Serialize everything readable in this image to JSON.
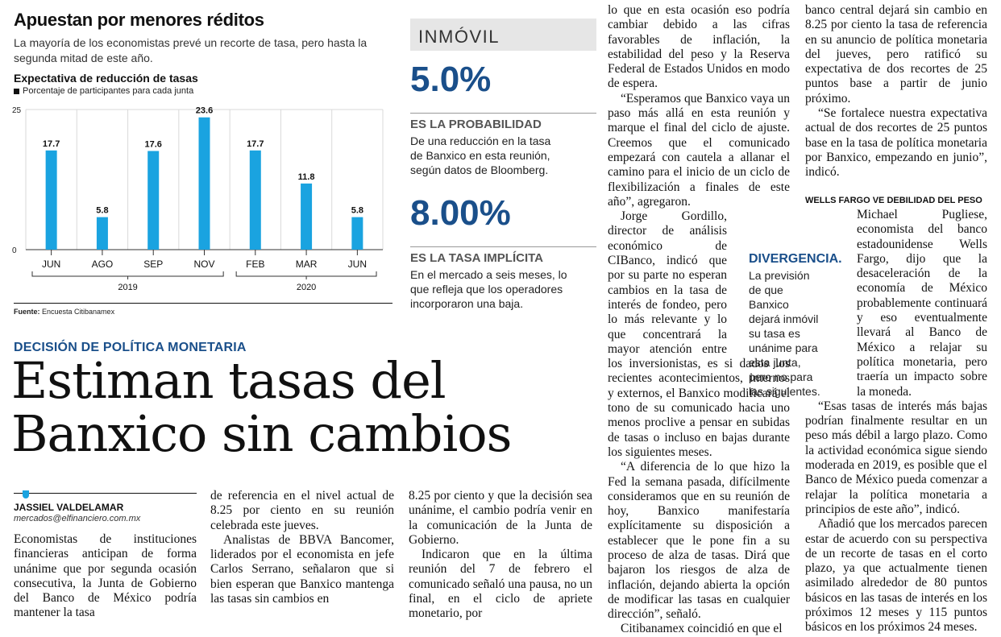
{
  "chart": {
    "title": "Apuestan por menores réditos",
    "subtitle": "La mayoría de los economistas prevé un recorte de tasa, pero hasta la segunda mitad de este año.",
    "heading": "Expectativa de reducción de tasas",
    "legend": "Porcentaje de participantes para cada junta",
    "source_label": "Fuente:",
    "source_text": "Encuesta Citibanamex"
  },
  "chart_data": {
    "type": "bar",
    "categories": [
      "JUN",
      "AGO",
      "SEP",
      "NOV",
      "FEB",
      "MAR",
      "JUN"
    ],
    "values": [
      17.7,
      5.8,
      17.6,
      23.6,
      17.7,
      11.8,
      5.8
    ],
    "value_labels": [
      "17.7",
      "5.8",
      "17.6",
      "23.6",
      "17.7",
      "11.8",
      "5.8"
    ],
    "ylim": [
      0,
      25
    ],
    "yticks": [
      "25",
      "0"
    ],
    "groups": [
      {
        "label": "2019",
        "span": [
          0,
          3
        ]
      },
      {
        "label": "2020",
        "span": [
          4,
          6
        ]
      }
    ],
    "bar_color": "#1aa3e0",
    "grid": true
  },
  "article": {
    "kicker": "DECISIÓN DE POLÍTICA MONETARIA",
    "headline_line1": "Estiman tasas del",
    "headline_line2": "Banxico sin cambios",
    "author": "JASSIEL VALDELAMAR",
    "email": "mercados@elfinanciero.com.mx",
    "col1": "Economistas de instituciones financieras anticipan de forma unánime que por segunda ocasión consecutiva, la Junta de Gobierno del Banco de México podría mantener la tasa",
    "col2a": "de referencia en el nivel actual de 8.25 por ciento en su reunión celebrada este jueves.",
    "col2b": "Analistas de BBVA Bancomer, liderados por el economista en jefe Carlos Serrano, señalaron que si bien esperan que Banxico mantenga las tasas sin cambios en",
    "col3a": "8.25 por ciento y que la decisión sea unánime, el cambio podría venir en la comunicación de la Junta de Gobierno.",
    "col3b": "Indicaron que en la última reunión del 7 de febrero el comunicado señaló una pausa, no un final, en el ciclo de apriete monetario, por",
    "col4a": "lo que en esta ocasión eso podría cambiar debido a las cifras favorables de inflación, la estabilidad del peso y la Reserva Federal de Estados Unidos en modo de espera.",
    "col4b": "“Esperamos que Banxico vaya un paso más allá en esta reunión y marque el final del ciclo de ajuste. Creemos que el comunicado empezará con cautela a allanar el camino para el inicio de un ciclo de flexibilización a finales de este año”, agregaron.",
    "col4c": "Jorge Gordillo, director de análisis económico de CIBanco, indicó que por su parte no esperan cambios en la tasa de interés de fondeo, pero lo más relevante y lo que concentrará la mayor atención entre los inversionistas, es si dados los recientes acontecimientos, internos y externos, el Banxico modificará el tono de su comunicado hacia uno menos proclive a pensar en subidas de tasas o incluso en bajas durante los siguientes meses.",
    "col4d": "“A diferencia de lo que hizo la Fed la semana pasada, difícilmente consideramos que en su reunión de hoy, Banxico manifestaría explícitamente su disposición a establecer que le pone fin a su proceso de alza de tasas. Dirá que bajaron los riesgos de alza de inflación, dejando abierta la opción de modificar las tasas en cualquier dirección”, señaló.",
    "col4e": "Citibanamex coincidió en que el",
    "col5a": "banco central dejará sin cambio en 8.25 por ciento la tasa de referencia en su anuncio de política monetaria del jueves, pero ratificó su expectativa de dos recortes de 25 puntos base a partir de junio próximo.",
    "col5b": "“Se fortalece nuestra expectativa actual de dos recortes de 25 puntos base en la tasa de política monetaria por Banxico, empezando en junio”, indicó.",
    "wells_head": "WELLS FARGO VE DEBILIDAD DEL PESO",
    "col5c": "Michael Pugliese, economista del banco estadounidense Wells Fargo, dijo que la desaceleración de la economía de México probablemente continuará y eso eventualmente llevará al Banco de México a relajar su política monetaria, pero traería un impacto sobre la moneda.",
    "col5d": "“Esas tasas de interés más bajas podrían finalmente resultar en un peso más débil a largo plazo. Como la actividad económica sigue siendo moderada en 2019, es posible que el Banco de México pueda comenzar a relajar la política monetaria a principios de este año”, indicó.",
    "col5e": "Añadió que los mercados parecen estar de acuerdo con su perspectiva de un recorte de tasas en el corto plazo, ya que actualmente tienen asimilado alrededor de 80 puntos básicos en las tasas de interés en los próximos 12 meses y 115 puntos básicos en los próximos 24 meses."
  },
  "sidebar": {
    "word": "INMÓVIL",
    "stat1": "5.0%",
    "label1": "ES LA PROBABILIDAD",
    "text1": "De una reducción en la tasa de Banxico en esta reunión, según datos de Bloomberg.",
    "stat2": "8.00%",
    "label2": "ES LA TASA IMPLÍCITA",
    "text2": "En el mercado a seis meses, lo que refleja que los operadores incorporaron una baja.",
    "div_title": "DIVERGENCIA.",
    "div_text": "La previsión de que Banxico dejará inmóvil su tasa es unánime para esta junta, pero no para las siguientes."
  }
}
